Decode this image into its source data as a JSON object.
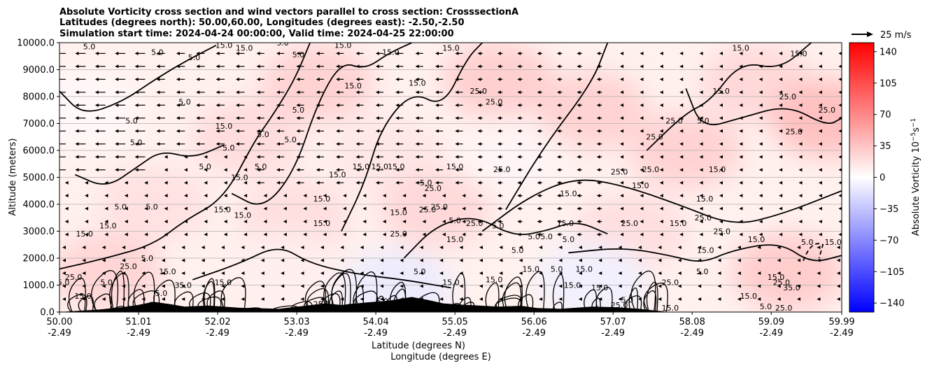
{
  "chart_data": {
    "type": "contour",
    "title": [
      "Absolute Vorticity cross section and wind vectors parallel to cross section: CrosssectionA",
      "Latitudes (degrees north): 50.00,60.00, Longitudes (degrees east): -2.50,-2.50",
      "Simulation start time: 2024-04-24 00:00:00, Valid time: 2024-04-25 22:00:00"
    ],
    "xlabel_lines": [
      "Latitude (degrees N)",
      "Longitude (degrees E)"
    ],
    "ylabel": "Altitude (meters)",
    "xlim": [
      50.0,
      59.99
    ],
    "ylim": [
      0,
      10000
    ],
    "x_ticks": [
      {
        "value": 50.0,
        "lat": "50.00",
        "lon": "-2.49"
      },
      {
        "value": 51.01,
        "lat": "51.01",
        "lon": "-2.49"
      },
      {
        "value": 52.02,
        "lat": "52.02",
        "lon": "-2.49"
      },
      {
        "value": 53.03,
        "lat": "53.03",
        "lon": "-2.49"
      },
      {
        "value": 54.04,
        "lat": "54.04",
        "lon": "-2.49"
      },
      {
        "value": 55.05,
        "lat": "55.05",
        "lon": "-2.49"
      },
      {
        "value": 56.06,
        "lat": "56.06",
        "lon": "-2.49"
      },
      {
        "value": 57.07,
        "lat": "57.07",
        "lon": "-2.49"
      },
      {
        "value": 58.08,
        "lat": "58.08",
        "lon": "-2.49"
      },
      {
        "value": 59.09,
        "lat": "59.09",
        "lon": "-2.49"
      },
      {
        "value": 59.99,
        "lat": "59.99",
        "lon": "-2.49"
      }
    ],
    "y_ticks": [
      {
        "value": 0,
        "label": "0.0"
      },
      {
        "value": 1000,
        "label": "1000.0"
      },
      {
        "value": 2000,
        "label": "2000.0"
      },
      {
        "value": 3000,
        "label": "3000.0"
      },
      {
        "value": 4000,
        "label": "4000.0"
      },
      {
        "value": 5000,
        "label": "5000.0"
      },
      {
        "value": 6000,
        "label": "6000.0"
      },
      {
        "value": 7000,
        "label": "7000.0"
      },
      {
        "value": 8000,
        "label": "8000.0"
      },
      {
        "value": 9000,
        "label": "9000.0"
      },
      {
        "value": 10000,
        "label": "10000.0"
      }
    ],
    "grid": {
      "horizontal": true,
      "vertical": false
    },
    "colorbar": {
      "label_main": "Absolute Vorticity 10",
      "label_exp1": "−5",
      "label_mid": "s",
      "label_exp2": "−1",
      "range": [
        -150,
        150
      ],
      "colormap": "bwr",
      "color_low": "#0000ff",
      "color_mid": "#ffffff",
      "color_high": "#ff0000",
      "ticks": [
        {
          "value": 140,
          "label": "140"
        },
        {
          "value": 105,
          "label": "105"
        },
        {
          "value": 70,
          "label": "70"
        },
        {
          "value": 35,
          "label": "35"
        },
        {
          "value": 0,
          "label": "0"
        },
        {
          "value": -35,
          "label": "−35"
        },
        {
          "value": -70,
          "label": "−70"
        },
        {
          "value": -105,
          "label": "−105"
        },
        {
          "value": -140,
          "label": "−140"
        }
      ]
    },
    "quiver_key": {
      "label": "25 m/s",
      "speed": 25
    },
    "wind_field": [
      {
        "lat_range": [
          50.0,
          51.2
        ],
        "alt_range": [
          5000,
          10000
        ],
        "u": -12
      },
      {
        "lat_range": [
          51.2,
          52.6
        ],
        "alt_range": [
          6000,
          10000
        ],
        "u": -10
      },
      {
        "lat_range": [
          52.6,
          55.2
        ],
        "alt_range": [
          4500,
          10000
        ],
        "u": -9
      },
      {
        "lat_range": [
          55.2,
          57.0
        ],
        "alt_range": [
          2500,
          10000
        ],
        "u": -6
      },
      {
        "lat_range": [
          57.0,
          59.99
        ],
        "alt_range": [
          1000,
          10000
        ],
        "u": -2
      },
      {
        "lat_range": [
          50.0,
          59.99
        ],
        "alt_range": [
          0,
          2500
        ],
        "u": -4
      }
    ],
    "shading": [
      {
        "lat": 50.3,
        "alt": 7500,
        "value": 4
      },
      {
        "lat": 51.2,
        "alt": 4000,
        "value": 18
      },
      {
        "lat": 52.4,
        "alt": 6500,
        "value": 22
      },
      {
        "lat": 53.3,
        "alt": 8500,
        "value": 28
      },
      {
        "lat": 53.0,
        "alt": 3500,
        "value": 20
      },
      {
        "lat": 54.2,
        "alt": 5800,
        "value": 15
      },
      {
        "lat": 54.8,
        "alt": 3800,
        "value": 24
      },
      {
        "lat": 55.6,
        "alt": 8600,
        "value": 30
      },
      {
        "lat": 55.8,
        "alt": 5800,
        "value": 6
      },
      {
        "lat": 56.8,
        "alt": 7500,
        "value": 28
      },
      {
        "lat": 57.3,
        "alt": 3000,
        "value": 20
      },
      {
        "lat": 58.0,
        "alt": 6000,
        "value": 28
      },
      {
        "lat": 58.9,
        "alt": 8500,
        "value": 24
      },
      {
        "lat": 59.8,
        "alt": 7200,
        "value": 40
      },
      {
        "lat": 59.3,
        "alt": 1500,
        "value": 32
      },
      {
        "lat": 56.8,
        "alt": 1200,
        "value": -8
      },
      {
        "lat": 54.3,
        "alt": 900,
        "value": -12
      },
      {
        "lat": 52.8,
        "alt": 1600,
        "value": 10
      },
      {
        "lat": 50.6,
        "alt": 1500,
        "value": 26
      }
    ],
    "contour_labels": [
      {
        "text": "5.0",
        "lat": 50.38,
        "alt": 9750
      },
      {
        "text": "5.0",
        "lat": 51.25,
        "alt": 9550
      },
      {
        "text": "5.0",
        "lat": 51.72,
        "alt": 9350
      },
      {
        "text": "15.0",
        "lat": 52.1,
        "alt": 9800
      },
      {
        "text": "15.0",
        "lat": 52.36,
        "alt": 9700
      },
      {
        "text": "5.0",
        "lat": 52.85,
        "alt": 9900
      },
      {
        "text": "5.0",
        "lat": 53.05,
        "alt": 9450
      },
      {
        "text": "15.0",
        "lat": 53.62,
        "alt": 9800
      },
      {
        "text": "15.0",
        "lat": 54.23,
        "alt": 9550
      },
      {
        "text": "15.0",
        "lat": 55.0,
        "alt": 9700
      },
      {
        "text": "15.0",
        "lat": 58.7,
        "alt": 9700
      },
      {
        "text": "15.0",
        "lat": 59.44,
        "alt": 9500
      },
      {
        "text": "15.0",
        "lat": 53.75,
        "alt": 8300
      },
      {
        "text": "15.0",
        "lat": 54.57,
        "alt": 8400
      },
      {
        "text": "25.0",
        "lat": 55.35,
        "alt": 8100
      },
      {
        "text": "25.0",
        "lat": 55.55,
        "alt": 7700
      },
      {
        "text": "15.0",
        "lat": 58.45,
        "alt": 8100
      },
      {
        "text": "25.0",
        "lat": 59.3,
        "alt": 7900
      },
      {
        "text": "25.0",
        "lat": 59.8,
        "alt": 7400
      },
      {
        "text": "5.0",
        "lat": 51.6,
        "alt": 7700
      },
      {
        "text": "5.0",
        "lat": 50.92,
        "alt": 7000
      },
      {
        "text": "5.0",
        "lat": 53.05,
        "alt": 7400
      },
      {
        "text": "15.0",
        "lat": 52.1,
        "alt": 6800
      },
      {
        "text": "5.0",
        "lat": 50.98,
        "alt": 6200
      },
      {
        "text": "5.0",
        "lat": 52.16,
        "alt": 6000
      },
      {
        "text": "5.0",
        "lat": 52.6,
        "alt": 6500
      },
      {
        "text": "5.0",
        "lat": 52.95,
        "alt": 6300
      },
      {
        "text": "25.0",
        "lat": 57.85,
        "alt": 7000
      },
      {
        "text": "25.0",
        "lat": 57.6,
        "alt": 6400
      },
      {
        "text": "5.0",
        "lat": 58.22,
        "alt": 7000
      },
      {
        "text": "25.0",
        "lat": 59.38,
        "alt": 6600
      },
      {
        "text": "5.0",
        "lat": 52.57,
        "alt": 5300
      },
      {
        "text": "5.0",
        "lat": 51.86,
        "alt": 5300
      },
      {
        "text": "15.0",
        "lat": 53.55,
        "alt": 5000
      },
      {
        "text": "15.0",
        "lat": 53.85,
        "alt": 5300
      },
      {
        "text": "15.0",
        "lat": 54.09,
        "alt": 5300
      },
      {
        "text": "15.0",
        "lat": 54.3,
        "alt": 5300
      },
      {
        "text": "15.0",
        "lat": 55.05,
        "alt": 5300
      },
      {
        "text": "25.0",
        "lat": 55.65,
        "alt": 5200
      },
      {
        "text": "25.0",
        "lat": 57.15,
        "alt": 5100
      },
      {
        "text": "25.0",
        "lat": 57.55,
        "alt": 5200
      },
      {
        "text": "15.0",
        "lat": 58.4,
        "alt": 5200
      },
      {
        "text": "15.0",
        "lat": 52.3,
        "alt": 4900
      },
      {
        "text": "5.0",
        "lat": 54.68,
        "alt": 4700
      },
      {
        "text": "25.0",
        "lat": 54.77,
        "alt": 4500
      },
      {
        "text": "15.0",
        "lat": 53.35,
        "alt": 4100
      },
      {
        "text": "15.0",
        "lat": 56.5,
        "alt": 4300
      },
      {
        "text": "15.0",
        "lat": 57.42,
        "alt": 4600
      },
      {
        "text": "15.0",
        "lat": 58.24,
        "alt": 4100
      },
      {
        "text": "5.0",
        "lat": 50.78,
        "alt": 3800
      },
      {
        "text": "5.0",
        "lat": 51.18,
        "alt": 3800
      },
      {
        "text": "15.0",
        "lat": 52.08,
        "alt": 3700
      },
      {
        "text": "15.0",
        "lat": 52.34,
        "alt": 3500
      },
      {
        "text": "15.0",
        "lat": 53.35,
        "alt": 3200
      },
      {
        "text": "15.0",
        "lat": 54.33,
        "alt": 3600
      },
      {
        "text": "25.0",
        "lat": 54.7,
        "alt": 3700
      },
      {
        "text": "25.0",
        "lat": 54.85,
        "alt": 3800
      },
      {
        "text": "5.0",
        "lat": 55.05,
        "alt": 3300
      },
      {
        "text": "25.0",
        "lat": 55.3,
        "alt": 3200
      },
      {
        "text": "5.0",
        "lat": 55.6,
        "alt": 3100
      },
      {
        "text": "15.0",
        "lat": 56.46,
        "alt": 3200
      },
      {
        "text": "25.0",
        "lat": 57.28,
        "alt": 3200
      },
      {
        "text": "15.0",
        "lat": 57.9,
        "alt": 3200
      },
      {
        "text": "25.0",
        "lat": 58.22,
        "alt": 3400
      },
      {
        "text": "15.0",
        "lat": 50.62,
        "alt": 3100
      },
      {
        "text": "15.0",
        "lat": 50.32,
        "alt": 2800
      },
      {
        "text": "15.0",
        "lat": 55.05,
        "alt": 2600
      },
      {
        "text": "25.0",
        "lat": 54.33,
        "alt": 2800
      },
      {
        "text": "5.0",
        "lat": 56.06,
        "alt": 2700
      },
      {
        "text": "5.0",
        "lat": 56.22,
        "alt": 2700
      },
      {
        "text": "5.0",
        "lat": 56.5,
        "alt": 2600
      },
      {
        "text": "15.0",
        "lat": 58.25,
        "alt": 2200
      },
      {
        "text": "25.0",
        "lat": 58.46,
        "alt": 2900
      },
      {
        "text": "15.0",
        "lat": 58.9,
        "alt": 2600
      },
      {
        "text": "5.0",
        "lat": 59.55,
        "alt": 2500
      },
      {
        "text": "15.0",
        "lat": 59.88,
        "alt": 2500
      },
      {
        "text": "5.0",
        "lat": 51.12,
        "alt": 1900
      },
      {
        "text": "25.0",
        "lat": 50.88,
        "alt": 1600
      },
      {
        "text": "15.0",
        "lat": 51.38,
        "alt": 1400
      },
      {
        "text": "5.0",
        "lat": 55.85,
        "alt": 2200
      },
      {
        "text": "15.0",
        "lat": 56.02,
        "alt": 1500
      },
      {
        "text": "5.0",
        "lat": 56.35,
        "alt": 1500
      },
      {
        "text": "15.0",
        "lat": 56.7,
        "alt": 1500
      },
      {
        "text": "5.0",
        "lat": 58.21,
        "alt": 1400
      },
      {
        "text": "15.0",
        "lat": 59.15,
        "alt": 1200
      },
      {
        "text": "5.0",
        "lat": 54.6,
        "alt": 1400
      },
      {
        "text": "15.0",
        "lat": 55.55,
        "alt": 1100
      },
      {
        "text": "15.0",
        "lat": 56.55,
        "alt": 900
      },
      {
        "text": "25.0",
        "lat": 57.8,
        "alt": 1000
      },
      {
        "text": "15.0",
        "lat": 56.9,
        "alt": 800
      },
      {
        "text": "35.0",
        "lat": 51.58,
        "alt": 900
      },
      {
        "text": "15.0",
        "lat": 52.09,
        "alt": 1000
      },
      {
        "text": "35.0",
        "lat": 59.35,
        "alt": 800
      },
      {
        "text": "25.0",
        "lat": 59.22,
        "alt": 1000
      },
      {
        "text": "5.0",
        "lat": 51.3,
        "alt": 600
      },
      {
        "text": "5.0",
        "lat": 50.6,
        "alt": 1000
      },
      {
        "text": "15.0",
        "lat": 50.3,
        "alt": 500
      },
      {
        "text": "25.0",
        "lat": 50.18,
        "alt": 1200
      },
      {
        "text": "5.0",
        "lat": 50.05,
        "alt": 1000
      },
      {
        "text": "25.0",
        "lat": 53.35,
        "alt": 200
      },
      {
        "text": "15.0",
        "lat": 55.0,
        "alt": 1000
      },
      {
        "text": "5.0",
        "lat": 54.12,
        "alt": 300
      },
      {
        "text": "15.0",
        "lat": 57.8,
        "alt": 50
      },
      {
        "text": "25.0",
        "lat": 59.25,
        "alt": 50
      },
      {
        "text": "5.0",
        "lat": 59.02,
        "alt": 100
      },
      {
        "text": "15.0",
        "lat": 58.8,
        "alt": 500
      },
      {
        "text": "5.0",
        "lat": 57.25,
        "alt": 350
      },
      {
        "text": "25.0",
        "lat": 57.15,
        "alt": 150
      }
    ]
  }
}
